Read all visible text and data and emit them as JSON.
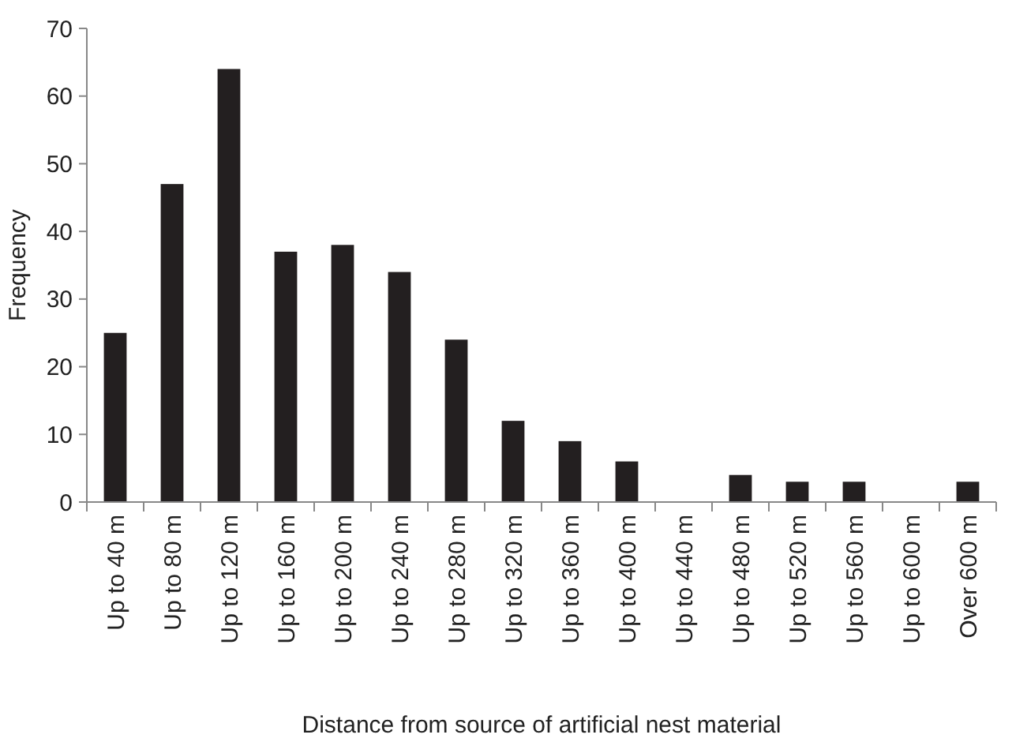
{
  "chart_data": {
    "type": "bar",
    "xlabel": "Distance from source of artificial nest material",
    "ylabel": "Frequency",
    "categories": [
      "Up to 40 m",
      "Up to 80 m",
      "Up to 120 m",
      "Up to 160 m",
      "Up to 200 m",
      "Up to 240 m",
      "Up to 280 m",
      "Up to 320 m",
      "Up to 360 m",
      "Up to 400 m",
      "Up to 440 m",
      "Up to 480 m",
      "Up to 520 m",
      "Up to 560 m",
      "Up to 600 m",
      "Over 600 m"
    ],
    "values": [
      25,
      47,
      64,
      37,
      38,
      34,
      24,
      12,
      9,
      6,
      0,
      4,
      3,
      3,
      0,
      3
    ],
    "color": "#231f20",
    "ylim": [
      0,
      70
    ],
    "yticks": [
      0,
      10,
      20,
      30,
      40,
      50,
      60,
      70
    ],
    "grid": false
  }
}
